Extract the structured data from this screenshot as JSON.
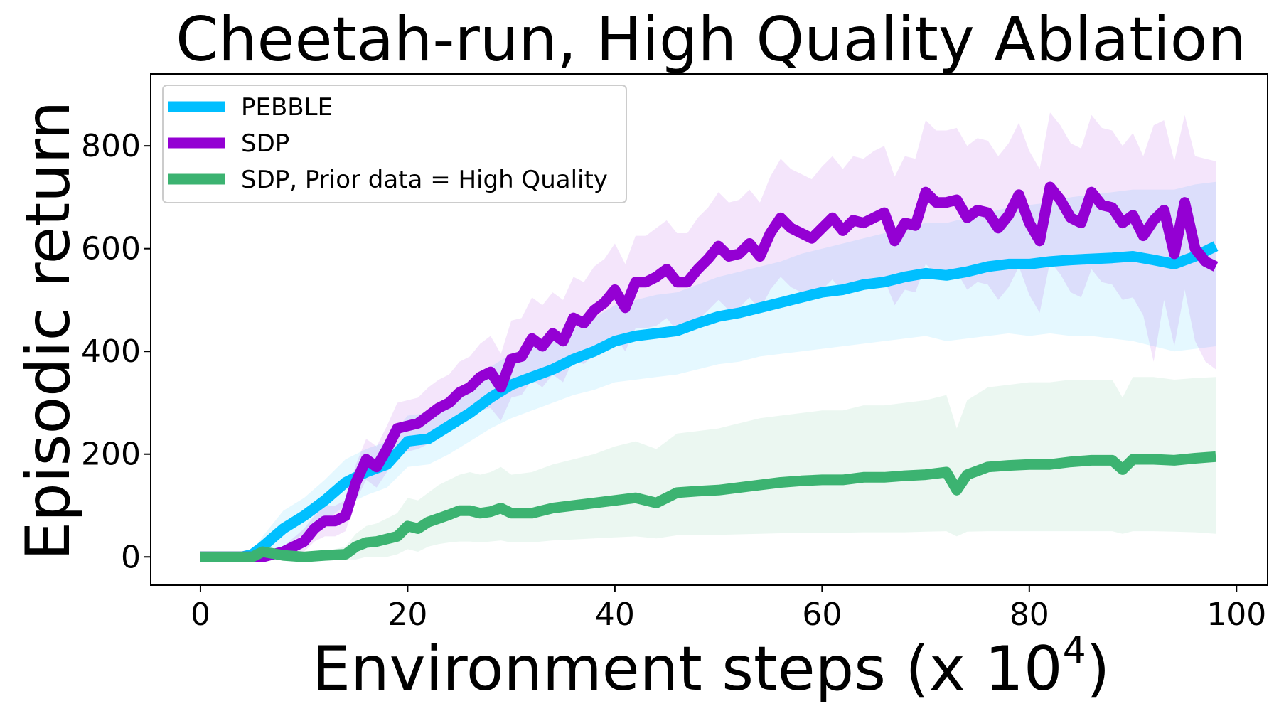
{
  "chart_data": {
    "type": "line",
    "title": "Cheetah-run, High Quality Ablation",
    "xlabel": "Environment steps (x 10",
    "xlabel_exponent": "4",
    "xlabel_suffix": ")",
    "ylabel": "Episodic return",
    "xlim": [
      -4.8,
      103
    ],
    "ylim": [
      -55,
      940
    ],
    "xticks": [
      0,
      20,
      40,
      60,
      80,
      100
    ],
    "yticks": [
      0,
      200,
      400,
      600,
      800
    ],
    "grid": false,
    "legend": "top-left",
    "series": [
      {
        "name": "PEBBLE",
        "color": "#00bfff",
        "x": [
          0,
          2,
          4,
          5,
          6,
          8,
          10,
          12,
          14,
          16,
          18,
          20,
          22,
          24,
          26,
          28,
          30,
          32,
          34,
          36,
          38,
          40,
          42,
          44,
          46,
          48,
          50,
          52,
          54,
          56,
          58,
          60,
          62,
          64,
          66,
          68,
          70,
          72,
          74,
          76,
          78,
          80,
          82,
          84,
          86,
          88,
          90,
          92,
          94,
          96,
          98
        ],
        "y": [
          0,
          0,
          0,
          5,
          20,
          55,
          80,
          110,
          145,
          165,
          180,
          225,
          230,
          255,
          280,
          310,
          335,
          350,
          365,
          385,
          400,
          420,
          430,
          435,
          440,
          455,
          468,
          475,
          485,
          495,
          505,
          515,
          520,
          530,
          535,
          545,
          552,
          548,
          555,
          565,
          570,
          570,
          575,
          578,
          580,
          582,
          585,
          578,
          570,
          585,
          605
        ],
        "lower": [
          0,
          0,
          0,
          0,
          0,
          20,
          45,
          70,
          100,
          120,
          135,
          175,
          180,
          200,
          225,
          250,
          270,
          285,
          300,
          315,
          325,
          340,
          345,
          350,
          355,
          365,
          375,
          380,
          390,
          395,
          400,
          405,
          410,
          415,
          420,
          425,
          430,
          420,
          425,
          430,
          435,
          430,
          435,
          430,
          430,
          425,
          420,
          410,
          400,
          405,
          410
        ],
        "upper": [
          0,
          0,
          0,
          10,
          40,
          90,
          115,
          150,
          190,
          210,
          225,
          275,
          280,
          305,
          335,
          370,
          395,
          410,
          425,
          445,
          465,
          490,
          500,
          510,
          515,
          530,
          545,
          555,
          565,
          575,
          590,
          600,
          610,
          620,
          630,
          640,
          650,
          650,
          660,
          670,
          680,
          685,
          690,
          700,
          705,
          710,
          715,
          715,
          715,
          725,
          730
        ]
      },
      {
        "name": "SDP",
        "color": "#9400d3",
        "x": [
          0,
          2,
          4,
          5,
          6,
          8,
          10,
          11,
          12,
          13,
          14,
          15,
          16,
          17,
          18,
          19,
          20,
          21,
          22,
          23,
          24,
          25,
          26,
          27,
          28,
          29,
          30,
          31,
          32,
          33,
          34,
          35,
          36,
          37,
          38,
          39,
          40,
          41,
          42,
          43,
          44,
          45,
          46,
          47,
          48,
          49,
          50,
          51,
          52,
          53,
          54,
          55,
          56,
          57,
          58,
          59,
          60,
          61,
          62,
          63,
          64,
          65,
          66,
          67,
          68,
          69,
          70,
          71,
          72,
          73,
          74,
          75,
          76,
          77,
          78,
          79,
          80,
          81,
          82,
          83,
          84,
          85,
          86,
          87,
          88,
          89,
          90,
          91,
          92,
          93,
          94,
          95,
          96,
          97,
          98
        ],
        "y": [
          0,
          0,
          0,
          0,
          0,
          10,
          30,
          55,
          70,
          70,
          80,
          145,
          190,
          175,
          210,
          250,
          255,
          260,
          275,
          290,
          300,
          320,
          330,
          350,
          360,
          330,
          385,
          390,
          425,
          410,
          435,
          420,
          465,
          455,
          480,
          495,
          520,
          485,
          535,
          535,
          545,
          560,
          535,
          535,
          560,
          580,
          605,
          585,
          590,
          610,
          585,
          630,
          660,
          640,
          630,
          620,
          640,
          660,
          635,
          655,
          650,
          660,
          670,
          615,
          650,
          645,
          710,
          690,
          690,
          695,
          660,
          675,
          670,
          640,
          665,
          705,
          650,
          615,
          720,
          695,
          660,
          650,
          710,
          685,
          680,
          650,
          665,
          625,
          655,
          675,
          590,
          690,
          600,
          575,
          565
        ],
        "lower": [
          0,
          0,
          0,
          0,
          0,
          0,
          10,
          30,
          40,
          40,
          50,
          110,
          150,
          135,
          165,
          200,
          205,
          210,
          220,
          235,
          245,
          260,
          270,
          285,
          290,
          265,
          310,
          315,
          345,
          330,
          355,
          340,
          385,
          375,
          395,
          410,
          430,
          400,
          445,
          445,
          450,
          465,
          440,
          440,
          460,
          480,
          500,
          480,
          485,
          505,
          480,
          520,
          545,
          525,
          515,
          505,
          520,
          540,
          515,
          530,
          525,
          530,
          540,
          490,
          520,
          515,
          570,
          550,
          550,
          555,
          520,
          535,
          530,
          500,
          525,
          565,
          510,
          475,
          575,
          550,
          515,
          505,
          560,
          535,
          530,
          500,
          505,
          470,
          380,
          500,
          410,
          520,
          420,
          380,
          365
        ],
        "upper": [
          0,
          0,
          0,
          0,
          0,
          20,
          55,
          80,
          100,
          100,
          110,
          180,
          230,
          215,
          255,
          300,
          305,
          310,
          330,
          345,
          355,
          380,
          390,
          415,
          430,
          395,
          460,
          465,
          505,
          490,
          515,
          500,
          545,
          535,
          565,
          580,
          610,
          570,
          625,
          625,
          640,
          655,
          630,
          630,
          660,
          680,
          710,
          690,
          695,
          715,
          690,
          740,
          775,
          755,
          745,
          735,
          760,
          780,
          755,
          780,
          775,
          790,
          800,
          740,
          780,
          775,
          850,
          830,
          830,
          835,
          800,
          815,
          810,
          780,
          805,
          845,
          790,
          755,
          865,
          840,
          805,
          795,
          860,
          835,
          830,
          800,
          825,
          780,
          840,
          850,
          770,
          860,
          780,
          775,
          770
        ]
      },
      {
        "name": "SDP, Prior data = High Quality",
        "color": "#3cb371",
        "x": [
          0,
          2,
          4,
          5,
          6,
          8,
          10,
          12,
          14,
          15,
          16,
          17,
          18,
          19,
          20,
          21,
          22,
          23,
          24,
          25,
          26,
          27,
          28,
          29,
          30,
          32,
          34,
          36,
          38,
          40,
          42,
          44,
          46,
          48,
          50,
          52,
          54,
          56,
          58,
          60,
          62,
          64,
          66,
          68,
          70,
          72,
          73,
          74,
          76,
          78,
          80,
          82,
          84,
          86,
          88,
          89,
          90,
          92,
          94,
          96,
          98
        ],
        "y": [
          0,
          0,
          0,
          0,
          10,
          3,
          0,
          3,
          5,
          20,
          28,
          30,
          35,
          40,
          60,
          55,
          68,
          75,
          82,
          90,
          90,
          85,
          88,
          95,
          85,
          85,
          95,
          100,
          105,
          110,
          115,
          105,
          125,
          128,
          130,
          135,
          140,
          145,
          148,
          150,
          150,
          155,
          155,
          158,
          160,
          165,
          130,
          160,
          175,
          178,
          180,
          180,
          185,
          188,
          188,
          170,
          190,
          190,
          188,
          192,
          195
        ],
        "lower": [
          0,
          0,
          0,
          0,
          0,
          0,
          0,
          0,
          -5,
          -5,
          0,
          0,
          0,
          5,
          15,
          10,
          20,
          25,
          28,
          30,
          30,
          28,
          30,
          32,
          28,
          28,
          32,
          34,
          36,
          38,
          40,
          36,
          42,
          42,
          43,
          44,
          45,
          46,
          46,
          47,
          47,
          48,
          48,
          48,
          49,
          50,
          40,
          49,
          50,
          50,
          50,
          50,
          50,
          50,
          50,
          45,
          50,
          50,
          49,
          48,
          45
        ],
        "upper": [
          0,
          0,
          0,
          0,
          20,
          10,
          5,
          10,
          20,
          45,
          60,
          65,
          75,
          85,
          115,
          110,
          125,
          140,
          150,
          160,
          165,
          160,
          165,
          175,
          160,
          165,
          180,
          190,
          200,
          215,
          225,
          210,
          240,
          245,
          250,
          260,
          270,
          275,
          280,
          285,
          285,
          295,
          295,
          300,
          305,
          315,
          250,
          305,
          330,
          335,
          340,
          340,
          345,
          345,
          345,
          310,
          350,
          350,
          345,
          348,
          350
        ]
      }
    ]
  }
}
